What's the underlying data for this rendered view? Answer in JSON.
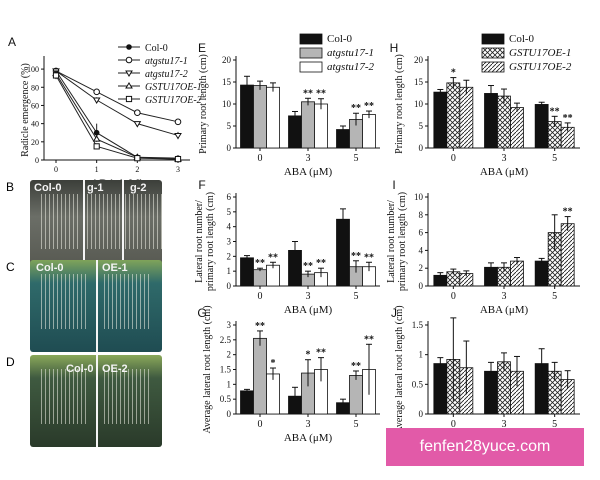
{
  "colors": {
    "black": "#111111",
    "gray": "#b5b5b5",
    "white": "#ffffff",
    "watermark": "#e25aa8"
  },
  "watermark": "fenfen28yuce.com",
  "photos": {
    "b": {
      "label": "B",
      "texts": [
        "Col-0",
        "g-1",
        "g-2"
      ]
    },
    "c": {
      "label": "C",
      "texts": [
        "Col-0",
        "OE-1"
      ]
    },
    "d": {
      "label": "D",
      "texts": [
        "Col-0",
        "OE-2"
      ]
    }
  },
  "chart_data": [
    {
      "id": "A",
      "type": "line",
      "panel_label": "A",
      "ylabel": "Radicle emergence (%)",
      "xlabel": "ABA (μM)",
      "x": [
        0,
        1,
        2,
        3
      ],
      "xticks": [
        "0",
        "1",
        "2",
        "3"
      ],
      "ylim": [
        0,
        110
      ],
      "yticks": [
        0,
        20,
        40,
        60,
        80,
        100
      ],
      "legend_position": "top-right",
      "series": [
        {
          "name": "Col-0",
          "marker": "filled-circle",
          "values": [
            98,
            30,
            3,
            2
          ]
        },
        {
          "name": "atgstu17-1",
          "marker": "open-circle",
          "values": [
            98,
            75,
            52,
            42
          ]
        },
        {
          "name": "atgstu17-2",
          "marker": "open-triangle-down",
          "values": [
            98,
            66,
            40,
            27
          ]
        },
        {
          "name": "GSTU17OE-1",
          "marker": "open-triangle-up",
          "values": [
            95,
            23,
            3,
            1
          ]
        },
        {
          "name": "GSTU17OE-2",
          "marker": "open-square",
          "values": [
            93,
            15,
            2,
            1
          ]
        }
      ]
    },
    {
      "id": "E",
      "type": "bar",
      "panel_label": "E",
      "ylabel": "Primary root length (cm)",
      "xlabel": "ABA (μM)",
      "categories": [
        "0",
        "3",
        "5"
      ],
      "ylim": [
        0,
        20
      ],
      "yticks": [
        0,
        5,
        10,
        15,
        20
      ],
      "legend": [
        "Col-0",
        "atgstu17-1",
        "atgstu17-2"
      ],
      "series": [
        {
          "name": "Col-0",
          "style": "black",
          "values": [
            14.3,
            7.3,
            4.2
          ],
          "errors": [
            2.0,
            1.0,
            0.8
          ],
          "stars": [
            "",
            "",
            ""
          ]
        },
        {
          "name": "atgstu17-1",
          "style": "gray",
          "values": [
            14.2,
            10.5,
            6.5
          ],
          "errors": [
            1.0,
            0.8,
            1.4
          ],
          "stars": [
            "",
            "**",
            "**"
          ]
        },
        {
          "name": "atgstu17-2",
          "style": "white",
          "values": [
            13.8,
            10.0,
            7.6
          ],
          "errors": [
            1.0,
            1.2,
            0.8
          ],
          "stars": [
            "",
            "**",
            "**"
          ]
        }
      ]
    },
    {
      "id": "F",
      "type": "bar",
      "panel_label": "F",
      "ylabel": "Lateral root number/ primary root length (cm)",
      "xlabel": "ABA (μM)",
      "categories": [
        "0",
        "3",
        "5"
      ],
      "ylim": [
        0,
        6
      ],
      "yticks": [
        0,
        1,
        2,
        3,
        4,
        5,
        6
      ],
      "series": [
        {
          "name": "Col-0",
          "style": "black",
          "values": [
            1.9,
            2.4,
            4.5
          ],
          "errors": [
            0.15,
            0.6,
            0.7
          ],
          "stars": [
            "",
            "",
            ""
          ]
        },
        {
          "name": "atgstu17-1",
          "style": "gray",
          "values": [
            1.1,
            0.8,
            1.3
          ],
          "errors": [
            0.1,
            0.2,
            0.4
          ],
          "stars": [
            "**",
            "**",
            "**"
          ]
        },
        {
          "name": "atgstu17-2",
          "style": "white",
          "values": [
            1.4,
            0.9,
            1.3
          ],
          "errors": [
            0.2,
            0.3,
            0.3
          ],
          "stars": [
            "**",
            "**",
            "**"
          ]
        }
      ]
    },
    {
      "id": "G",
      "type": "bar",
      "panel_label": "G",
      "ylabel": "Average lateral root length (cm)",
      "xlabel": "ABA (μM)",
      "categories": [
        "0",
        "3",
        "5"
      ],
      "ylim": [
        0,
        3
      ],
      "yticks": [
        0,
        0.5,
        1,
        1.5,
        2,
        2.5,
        3
      ],
      "series": [
        {
          "name": "Col-0",
          "style": "black",
          "values": [
            0.78,
            0.6,
            0.38
          ],
          "errors": [
            0.05,
            0.3,
            0.12
          ],
          "stars": [
            "",
            "",
            ""
          ]
        },
        {
          "name": "atgstu17-1",
          "style": "gray",
          "values": [
            2.55,
            1.38,
            1.3
          ],
          "errors": [
            0.25,
            0.45,
            0.15
          ],
          "stars": [
            "**",
            "*",
            "**"
          ]
        },
        {
          "name": "atgstu17-2",
          "style": "white",
          "values": [
            1.35,
            1.5,
            1.5
          ],
          "errors": [
            0.2,
            0.4,
            0.85
          ],
          "stars": [
            "*",
            "**",
            "**"
          ]
        }
      ]
    },
    {
      "id": "H",
      "type": "bar",
      "panel_label": "H",
      "ylabel": "Primary root length (cm)",
      "xlabel": "ABA (μM)",
      "categories": [
        "0",
        "3",
        "5"
      ],
      "ylim": [
        0,
        20
      ],
      "yticks": [
        0,
        5,
        10,
        15,
        20
      ],
      "legend": [
        "Col-0",
        "GSTU17OE-1",
        "GSTU17OE-2"
      ],
      "series": [
        {
          "name": "Col-0",
          "style": "black",
          "values": [
            12.7,
            12.4,
            9.9
          ],
          "errors": [
            0.6,
            1.8,
            0.5
          ],
          "stars": [
            "",
            "",
            ""
          ]
        },
        {
          "name": "GSTU17OE-1",
          "style": "crosshatch",
          "values": [
            14.8,
            11.8,
            6.0
          ],
          "errors": [
            1.2,
            1.6,
            1.2
          ],
          "stars": [
            "*",
            "",
            "**"
          ]
        },
        {
          "name": "GSTU17OE-2",
          "style": "diagonal",
          "values": [
            13.8,
            9.2,
            4.7
          ],
          "errors": [
            1.6,
            1.0,
            1.0
          ],
          "stars": [
            "",
            "",
            "**"
          ]
        }
      ]
    },
    {
      "id": "I",
      "type": "bar",
      "panel_label": "I",
      "ylabel": "Lateral root number/ primary root length (cm)",
      "xlabel": "ABA (μM)",
      "categories": [
        "0",
        "3",
        "5"
      ],
      "ylim": [
        0,
        10
      ],
      "yticks": [
        0,
        2,
        4,
        6,
        8,
        10
      ],
      "series": [
        {
          "name": "Col-0",
          "style": "black",
          "values": [
            1.2,
            2.1,
            2.8
          ],
          "errors": [
            0.3,
            0.5,
            0.3
          ],
          "stars": [
            "",
            "",
            ""
          ]
        },
        {
          "name": "GSTU17OE-1",
          "style": "crosshatch",
          "values": [
            1.6,
            2.1,
            6.0
          ],
          "errors": [
            0.3,
            0.5,
            2.0
          ],
          "stars": [
            "",
            "",
            ""
          ]
        },
        {
          "name": "GSTU17OE-2",
          "style": "diagonal",
          "values": [
            1.4,
            2.8,
            7.0
          ],
          "errors": [
            0.3,
            0.4,
            0.8
          ],
          "stars": [
            "",
            "",
            "**"
          ]
        }
      ]
    },
    {
      "id": "J",
      "type": "bar",
      "panel_label": "J",
      "ylabel": "Average lateral root length (cm)",
      "xlabel": "ABA (μM)",
      "categories": [
        "0",
        "3",
        "5"
      ],
      "ylim": [
        0,
        1.5
      ],
      "yticks": [
        0,
        0.5,
        1,
        1.5
      ],
      "series": [
        {
          "name": "Col-0",
          "style": "black",
          "values": [
            0.85,
            0.72,
            0.85
          ],
          "errors": [
            0.1,
            0.15,
            0.25
          ],
          "stars": [
            "",
            "",
            ""
          ]
        },
        {
          "name": "GSTU17OE-1",
          "style": "crosshatch",
          "values": [
            0.92,
            0.88,
            0.72
          ],
          "errors": [
            0.7,
            0.15,
            0.15
          ],
          "stars": [
            "",
            "",
            ""
          ]
        },
        {
          "name": "GSTU17OE-2",
          "style": "diagonal",
          "values": [
            0.78,
            0.72,
            0.58
          ],
          "errors": [
            0.45,
            0.25,
            0.15
          ],
          "stars": [
            "",
            "",
            ""
          ]
        }
      ]
    }
  ]
}
